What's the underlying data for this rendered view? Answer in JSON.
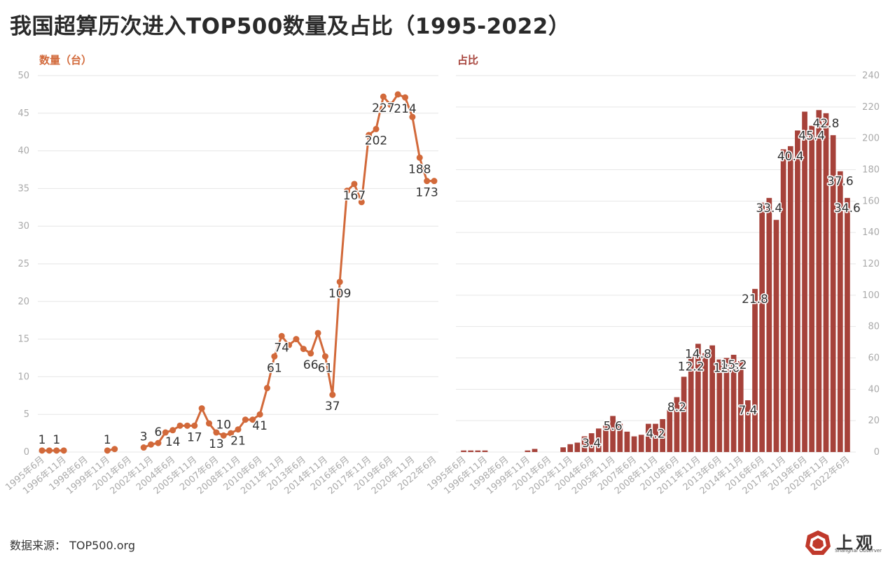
{
  "title": "我国超算历次进入TOP500数量及占比（1995-2022）",
  "source": "数据来源： TOP500.org",
  "logo": {
    "name": "上观",
    "subtitle": "Shanghai Observer",
    "color": "#c0392b"
  },
  "chart_data": [
    {
      "type": "line",
      "ylabel": "数量（台）",
      "color": "#d2693a",
      "ylim": [
        0,
        50
      ],
      "yticks": [
        0,
        5,
        10,
        15,
        20,
        25,
        30,
        35,
        40,
        45,
        50
      ],
      "grid": true,
      "x_tick_labels": [
        "1995年6月",
        "1996年11月",
        "1998年6月",
        "1999年11月",
        "2001年6月",
        "2002年11月",
        "2004年6月",
        "2005年11月",
        "2007年6月",
        "2008年11月",
        "2010年6月",
        "2011年11月",
        "2013年6月",
        "2014年11月",
        "2016年6月",
        "2017年11月",
        "2019年6月",
        "2020年11月",
        "2022年6月"
      ],
      "x_tick_positions": [
        0,
        3,
        6,
        9,
        12,
        15,
        18,
        21,
        24,
        27,
        30,
        33,
        36,
        39,
        42,
        45,
        48,
        51,
        54
      ],
      "points": [
        {
          "i": 0,
          "v": 0.2
        },
        {
          "i": 1,
          "v": 0.2
        },
        {
          "i": 2,
          "v": 0.2
        },
        {
          "i": 3,
          "v": 0.2
        },
        {
          "i": 9,
          "v": 0.2
        },
        {
          "i": 10,
          "v": 0.4
        },
        {
          "i": 14,
          "v": 0.6
        },
        {
          "i": 15,
          "v": 1.0
        },
        {
          "i": 16,
          "v": 1.2
        },
        {
          "i": 17,
          "v": 2.6
        },
        {
          "i": 18,
          "v": 2.9
        },
        {
          "i": 19,
          "v": 3.5
        },
        {
          "i": 20,
          "v": 3.5
        },
        {
          "i": 21,
          "v": 3.5
        },
        {
          "i": 22,
          "v": 5.8
        },
        {
          "i": 23,
          "v": 3.8
        },
        {
          "i": 24,
          "v": 2.6
        },
        {
          "i": 25,
          "v": 2.2
        },
        {
          "i": 26,
          "v": 2.5
        },
        {
          "i": 27,
          "v": 3.0
        },
        {
          "i": 28,
          "v": 4.3
        },
        {
          "i": 29,
          "v": 4.3
        },
        {
          "i": 30,
          "v": 5.0
        },
        {
          "i": 31,
          "v": 8.5
        },
        {
          "i": 32,
          "v": 12.7
        },
        {
          "i": 33,
          "v": 15.4
        },
        {
          "i": 34,
          "v": 14.2
        },
        {
          "i": 35,
          "v": 15.0
        },
        {
          "i": 36,
          "v": 13.7
        },
        {
          "i": 37,
          "v": 13.1
        },
        {
          "i": 38,
          "v": 15.8
        },
        {
          "i": 39,
          "v": 12.7
        },
        {
          "i": 40,
          "v": 7.6
        },
        {
          "i": 41,
          "v": 22.6
        },
        {
          "i": 42,
          "v": 34.7
        },
        {
          "i": 43,
          "v": 35.6
        },
        {
          "i": 44,
          "v": 33.2
        },
        {
          "i": 45,
          "v": 42.1
        },
        {
          "i": 46,
          "v": 42.9
        },
        {
          "i": 47,
          "v": 47.2
        },
        {
          "i": 48,
          "v": 46.1
        },
        {
          "i": 49,
          "v": 47.5
        },
        {
          "i": 50,
          "v": 47.1
        },
        {
          "i": 51,
          "v": 44.5
        },
        {
          "i": 52,
          "v": 39.1
        },
        {
          "i": 53,
          "v": 36.0
        },
        {
          "i": 54,
          "v": 36.0
        }
      ],
      "data_labels": [
        {
          "i": 0,
          "text": "1",
          "pos": "above"
        },
        {
          "i": 2,
          "text": "1",
          "pos": "above"
        },
        {
          "i": 9,
          "text": "1",
          "pos": "above"
        },
        {
          "i": 14,
          "text": "3",
          "pos": "above"
        },
        {
          "i": 16,
          "text": "6",
          "pos": "above"
        },
        {
          "i": 18,
          "text": "14",
          "pos": "below"
        },
        {
          "i": 21,
          "text": "17",
          "pos": "below"
        },
        {
          "i": 24,
          "text": "13",
          "pos": "below"
        },
        {
          "i": 25,
          "text": "10",
          "pos": "above"
        },
        {
          "i": 27,
          "text": "21",
          "pos": "below"
        },
        {
          "i": 30,
          "text": "41",
          "pos": "below"
        },
        {
          "i": 32,
          "text": "61",
          "pos": "below"
        },
        {
          "i": 33,
          "text": "74",
          "pos": "below"
        },
        {
          "i": 37,
          "text": "66",
          "pos": "below"
        },
        {
          "i": 39,
          "text": "61",
          "pos": "below"
        },
        {
          "i": 40,
          "text": "37",
          "pos": "below"
        },
        {
          "i": 41,
          "text": "109",
          "pos": "below"
        },
        {
          "i": 43,
          "text": "167",
          "pos": "below"
        },
        {
          "i": 46,
          "text": "202",
          "pos": "below"
        },
        {
          "i": 47,
          "text": "227",
          "pos": "below"
        },
        {
          "i": 50,
          "text": "214",
          "pos": "below"
        },
        {
          "i": 52,
          "text": "188",
          "pos": "below"
        },
        {
          "i": 53,
          "text": "173",
          "pos": "below"
        }
      ]
    },
    {
      "type": "bar",
      "ylabel": "占比",
      "color": "#a6423a",
      "ylim": [
        0,
        240
      ],
      "yticks": [
        0,
        20,
        40,
        60,
        80,
        100,
        120,
        140,
        160,
        180,
        200,
        220,
        240
      ],
      "grid": true,
      "x_tick_labels": [
        "1995年6月",
        "1996年11月",
        "1998年6月",
        "1999年11月",
        "2001年6月",
        "2002年11月",
        "2004年6月",
        "2005年11月",
        "2007年6月",
        "2008年11月",
        "2010年6月",
        "2011年11月",
        "2013年6月",
        "2014年11月",
        "2016年6月",
        "2017年11月",
        "2019年6月",
        "2020年11月",
        "2022年6月"
      ],
      "x_tick_positions": [
        0,
        3,
        6,
        9,
        12,
        15,
        18,
        21,
        24,
        27,
        30,
        33,
        36,
        39,
        42,
        45,
        48,
        51,
        54
      ],
      "values": [
        1,
        1,
        1,
        1,
        0,
        0,
        0,
        0,
        0,
        1,
        2,
        0,
        0,
        0,
        3,
        5,
        6,
        10,
        12,
        15,
        17,
        23,
        18,
        13,
        10,
        11,
        18,
        18,
        21,
        27,
        35,
        48,
        61,
        69,
        63,
        68,
        59,
        60,
        62,
        58,
        33,
        104,
        159,
        162,
        148,
        193,
        195,
        205,
        217,
        208,
        218,
        216,
        202,
        179,
        162,
        162
      ],
      "data_labels": [
        {
          "i": 18,
          "text": "3.4"
        },
        {
          "i": 21,
          "text": "5.6"
        },
        {
          "i": 27,
          "text": "4.2"
        },
        {
          "i": 30,
          "text": "8.2"
        },
        {
          "i": 32,
          "text": "12.2"
        },
        {
          "i": 33,
          "text": "14.8"
        },
        {
          "i": 37,
          "text": "12.6"
        },
        {
          "i": 38,
          "text": "15.2"
        },
        {
          "i": 40,
          "text": "7.4"
        },
        {
          "i": 41,
          "text": "21.8"
        },
        {
          "i": 43,
          "text": "33.4"
        },
        {
          "i": 46,
          "text": "40.4"
        },
        {
          "i": 49,
          "text": "45.4"
        },
        {
          "i": 51,
          "text": "42.8"
        },
        {
          "i": 53,
          "text": "37.6"
        },
        {
          "i": 54,
          "text": "34.6"
        }
      ]
    }
  ]
}
